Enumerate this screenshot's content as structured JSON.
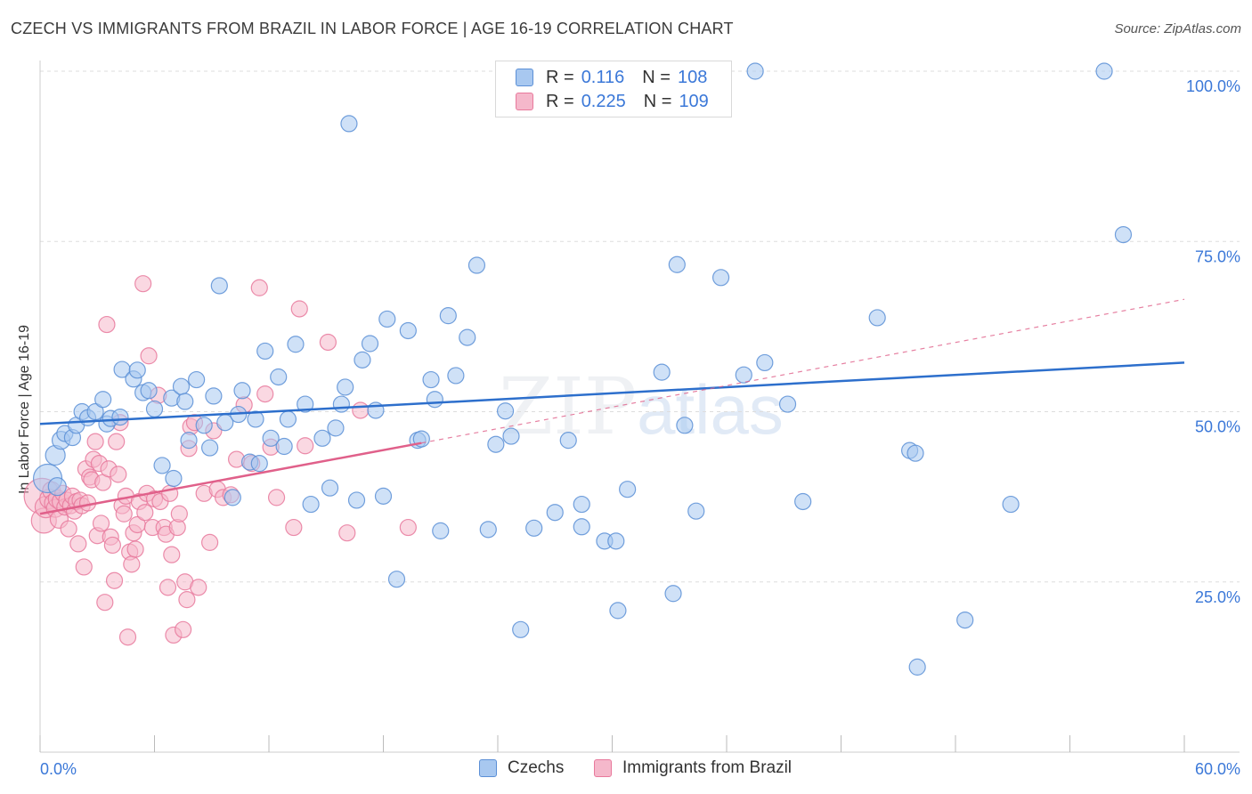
{
  "title": "CZECH VS IMMIGRANTS FROM BRAZIL IN LABOR FORCE | AGE 16-19 CORRELATION CHART",
  "source": "Source: ZipAtlas.com",
  "watermark": {
    "zip": "ZIP",
    "atlas": "atlas"
  },
  "legend_top": [
    {
      "r_label": "R =",
      "r_value": "0.116",
      "n_label": "N =",
      "n_value": "108"
    },
    {
      "r_label": "R =",
      "r_value": "0.225",
      "n_label": "N =",
      "n_value": "109"
    }
  ],
  "legend_bottom": [
    "Czechs",
    "Immigrants from Brazil"
  ],
  "colors": {
    "blue_fill": "#a8c8f0",
    "blue_stroke": "#5b8fd6",
    "blue_line": "#2d6fcc",
    "pink_fill": "#f5b8cb",
    "pink_stroke": "#e8799c",
    "pink_line": "#e0608a",
    "tick_text": "#3b78d8",
    "grid": "#dddddd"
  },
  "chart_data": {
    "type": "scatter",
    "title": "CZECH VS IMMIGRANTS FROM BRAZIL IN LABOR FORCE | AGE 16-19 CORRELATION CHART",
    "xlabel": "",
    "ylabel": "In Labor Force | Age 16-19",
    "xlim": [
      0,
      60
    ],
    "ylim": [
      0,
      100
    ],
    "x_tick_labels": [
      "0.0%",
      "60.0%"
    ],
    "y_ticks": [
      25,
      50,
      75,
      100
    ],
    "y_tick_labels": [
      "25.0%",
      "50.0%",
      "75.0%",
      "100.0%"
    ],
    "grid": true,
    "series": [
      {
        "name": "Czechs",
        "R": 0.116,
        "N": 108,
        "trend": {
          "x": [
            0,
            60
          ],
          "y": [
            48.2,
            57.2
          ],
          "style": "solid"
        },
        "points": [
          [
            0.4,
            40.2,
            16
          ],
          [
            0.8,
            43.6,
            11
          ],
          [
            0.9,
            39.0,
            10
          ],
          [
            1.1,
            45.8,
            10
          ],
          [
            1.3,
            46.8,
            9
          ],
          [
            1.7,
            46.2,
            9
          ],
          [
            1.9,
            48.0,
            9
          ],
          [
            2.2,
            50.0,
            9
          ],
          [
            2.5,
            49.1,
            9
          ],
          [
            2.9,
            50.0,
            9
          ],
          [
            3.3,
            51.8,
            9
          ],
          [
            3.5,
            48.2,
            9
          ],
          [
            3.7,
            49.0,
            9
          ],
          [
            4.2,
            49.2,
            9
          ],
          [
            4.3,
            56.2,
            9
          ],
          [
            4.9,
            54.8,
            9
          ],
          [
            5.1,
            56.1,
            9
          ],
          [
            5.4,
            52.8,
            9
          ],
          [
            5.7,
            53.1,
            9
          ],
          [
            6.0,
            50.4,
            9
          ],
          [
            6.4,
            42.1,
            9
          ],
          [
            6.9,
            52.0,
            9
          ],
          [
            7.0,
            40.2,
            9
          ],
          [
            7.4,
            53.7,
            9
          ],
          [
            7.6,
            51.5,
            9
          ],
          [
            7.8,
            45.8,
            9
          ],
          [
            8.2,
            54.7,
            9
          ],
          [
            8.6,
            48.0,
            9
          ],
          [
            8.9,
            44.7,
            9
          ],
          [
            9.1,
            52.3,
            9
          ],
          [
            9.4,
            68.5,
            9
          ],
          [
            9.7,
            48.4,
            9
          ],
          [
            10.1,
            37.4,
            9
          ],
          [
            10.4,
            49.6,
            9
          ],
          [
            10.6,
            53.1,
            9
          ],
          [
            11.0,
            42.6,
            9
          ],
          [
            11.3,
            48.9,
            9
          ],
          [
            11.5,
            42.4,
            9
          ],
          [
            11.8,
            58.9,
            9
          ],
          [
            12.1,
            46.1,
            9
          ],
          [
            12.5,
            55.1,
            9
          ],
          [
            12.8,
            44.9,
            9
          ],
          [
            13.0,
            48.9,
            9
          ],
          [
            13.4,
            59.9,
            9
          ],
          [
            13.9,
            51.1,
            9
          ],
          [
            14.2,
            36.4,
            9
          ],
          [
            14.8,
            46.1,
            9
          ],
          [
            15.2,
            38.8,
            9
          ],
          [
            15.5,
            47.6,
            9
          ],
          [
            15.8,
            51.1,
            9
          ],
          [
            16.0,
            53.6,
            9
          ],
          [
            16.2,
            92.3,
            9
          ],
          [
            16.6,
            37.0,
            9
          ],
          [
            16.9,
            57.6,
            9
          ],
          [
            17.3,
            60.0,
            9
          ],
          [
            17.6,
            50.2,
            9
          ],
          [
            18.0,
            37.6,
            9
          ],
          [
            18.2,
            63.6,
            9
          ],
          [
            18.7,
            25.4,
            9
          ],
          [
            19.3,
            61.9,
            9
          ],
          [
            19.8,
            45.8,
            9
          ],
          [
            20.0,
            46.0,
            9
          ],
          [
            20.5,
            54.7,
            9
          ],
          [
            20.7,
            51.8,
            9
          ],
          [
            21.0,
            32.5,
            9
          ],
          [
            21.4,
            64.1,
            9
          ],
          [
            21.8,
            55.3,
            9
          ],
          [
            22.4,
            60.9,
            9
          ],
          [
            22.9,
            71.5,
            9
          ],
          [
            23.5,
            32.7,
            9
          ],
          [
            23.9,
            45.2,
            9
          ],
          [
            24.4,
            50.1,
            9
          ],
          [
            24.7,
            46.4,
            9
          ],
          [
            25.2,
            18.0,
            9
          ],
          [
            25.9,
            32.9,
            9
          ],
          [
            27.0,
            35.2,
            9
          ],
          [
            27.7,
            45.8,
            9
          ],
          [
            28.4,
            36.4,
            9
          ],
          [
            28.4,
            33.1,
            9
          ],
          [
            29.6,
            31.0,
            9
          ],
          [
            30.2,
            31.0,
            9
          ],
          [
            30.3,
            20.8,
            9
          ],
          [
            30.8,
            38.6,
            9
          ],
          [
            31.9,
            100.0,
            9
          ],
          [
            32.6,
            55.8,
            9
          ],
          [
            33.2,
            23.3,
            9
          ],
          [
            33.4,
            71.6,
            9
          ],
          [
            33.8,
            48.0,
            9
          ],
          [
            34.4,
            35.4,
            9
          ],
          [
            35.4,
            100.0,
            9
          ],
          [
            35.7,
            69.7,
            9
          ],
          [
            36.9,
            55.4,
            9
          ],
          [
            37.5,
            100.0,
            9
          ],
          [
            38.0,
            57.2,
            9
          ],
          [
            39.2,
            51.1,
            9
          ],
          [
            40.0,
            36.8,
            9
          ],
          [
            43.9,
            63.8,
            9
          ],
          [
            45.6,
            44.3,
            9
          ],
          [
            45.9,
            43.9,
            9
          ],
          [
            46.0,
            12.5,
            9
          ],
          [
            48.5,
            19.4,
            9
          ],
          [
            50.9,
            36.4,
            9
          ],
          [
            55.8,
            100.0,
            9
          ],
          [
            56.8,
            76.0,
            9
          ]
        ]
      },
      {
        "name": "Immigrants from Brazil",
        "R": 0.225,
        "N": 109,
        "trend": {
          "x": [
            0,
            20
          ],
          "y": [
            35.0,
            45.4
          ],
          "style": "solid",
          "extended": {
            "x": [
              20,
              60
            ],
            "y": [
              45.4,
              66.5
            ],
            "style": "dashed"
          }
        },
        "points": [
          [
            0.1,
            37.6,
            20
          ],
          [
            0.2,
            34.0,
            14
          ],
          [
            0.3,
            36.0,
            12
          ],
          [
            0.5,
            37.2,
            11
          ],
          [
            0.6,
            38.4,
            10
          ],
          [
            0.7,
            36.6,
            10
          ],
          [
            0.8,
            35.8,
            10
          ],
          [
            0.9,
            37.2,
            10
          ],
          [
            1.0,
            34.2,
            10
          ],
          [
            1.1,
            36.8,
            10
          ],
          [
            1.2,
            38.0,
            9
          ],
          [
            1.3,
            36.0,
            9
          ],
          [
            1.4,
            37.0,
            9
          ],
          [
            1.5,
            32.8,
            9
          ],
          [
            1.6,
            36.2,
            9
          ],
          [
            1.7,
            37.6,
            9
          ],
          [
            1.8,
            35.4,
            9
          ],
          [
            1.9,
            36.8,
            9
          ],
          [
            2.0,
            30.6,
            9
          ],
          [
            2.1,
            37.0,
            9
          ],
          [
            2.2,
            36.2,
            9
          ],
          [
            2.3,
            27.2,
            9
          ],
          [
            2.4,
            41.6,
            9
          ],
          [
            2.5,
            36.6,
            9
          ],
          [
            2.6,
            40.4,
            9
          ],
          [
            2.7,
            40.0,
            9
          ],
          [
            2.8,
            43.0,
            9
          ],
          [
            2.9,
            45.6,
            9
          ],
          [
            3.0,
            31.8,
            9
          ],
          [
            3.1,
            42.4,
            9
          ],
          [
            3.2,
            33.6,
            9
          ],
          [
            3.3,
            39.6,
            9
          ],
          [
            3.4,
            22.0,
            9
          ],
          [
            3.5,
            62.8,
            9
          ],
          [
            3.6,
            41.6,
            9
          ],
          [
            3.7,
            31.6,
            9
          ],
          [
            3.8,
            30.4,
            9
          ],
          [
            3.9,
            25.2,
            9
          ],
          [
            4.0,
            45.6,
            9
          ],
          [
            4.1,
            40.8,
            9
          ],
          [
            4.2,
            48.4,
            9
          ],
          [
            4.3,
            36.2,
            9
          ],
          [
            4.4,
            35.0,
            9
          ],
          [
            4.5,
            37.6,
            9
          ],
          [
            4.6,
            16.9,
            9
          ],
          [
            4.7,
            29.4,
            9
          ],
          [
            4.8,
            27.6,
            9
          ],
          [
            4.9,
            32.2,
            9
          ],
          [
            5.0,
            29.8,
            9
          ],
          [
            5.1,
            33.4,
            9
          ],
          [
            5.2,
            36.8,
            9
          ],
          [
            5.4,
            68.8,
            9
          ],
          [
            5.5,
            35.2,
            9
          ],
          [
            5.6,
            38.0,
            9
          ],
          [
            5.7,
            58.2,
            9
          ],
          [
            5.9,
            33.0,
            9
          ],
          [
            6.0,
            37.2,
            9
          ],
          [
            6.2,
            52.4,
            9
          ],
          [
            6.3,
            36.8,
            9
          ],
          [
            6.5,
            33.0,
            9
          ],
          [
            6.6,
            32.0,
            9
          ],
          [
            6.7,
            24.2,
            9
          ],
          [
            6.8,
            38.0,
            9
          ],
          [
            6.9,
            29.0,
            9
          ],
          [
            7.0,
            17.2,
            9
          ],
          [
            7.2,
            33.0,
            9
          ],
          [
            7.3,
            35.0,
            9
          ],
          [
            7.5,
            18.0,
            9
          ],
          [
            7.6,
            25.0,
            9
          ],
          [
            7.7,
            22.4,
            9
          ],
          [
            7.8,
            44.6,
            9
          ],
          [
            7.9,
            47.8,
            9
          ],
          [
            8.1,
            48.4,
            9
          ],
          [
            8.3,
            24.2,
            9
          ],
          [
            8.6,
            38.0,
            9
          ],
          [
            8.9,
            30.8,
            9
          ],
          [
            9.1,
            47.2,
            9
          ],
          [
            9.3,
            38.6,
            9
          ],
          [
            9.6,
            37.4,
            9
          ],
          [
            10.0,
            37.8,
            9
          ],
          [
            10.3,
            43.0,
            9
          ],
          [
            10.7,
            51.0,
            9
          ],
          [
            11.1,
            42.4,
            9
          ],
          [
            11.5,
            68.2,
            9
          ],
          [
            11.8,
            52.6,
            9
          ],
          [
            12.1,
            44.8,
            9
          ],
          [
            12.4,
            37.4,
            9
          ],
          [
            13.3,
            33.0,
            9
          ],
          [
            13.6,
            65.1,
            9
          ],
          [
            13.9,
            45.0,
            9
          ],
          [
            15.1,
            60.2,
            9
          ],
          [
            16.1,
            32.2,
            9
          ],
          [
            16.8,
            50.2,
            9
          ],
          [
            19.3,
            33.0,
            9
          ]
        ]
      }
    ]
  }
}
